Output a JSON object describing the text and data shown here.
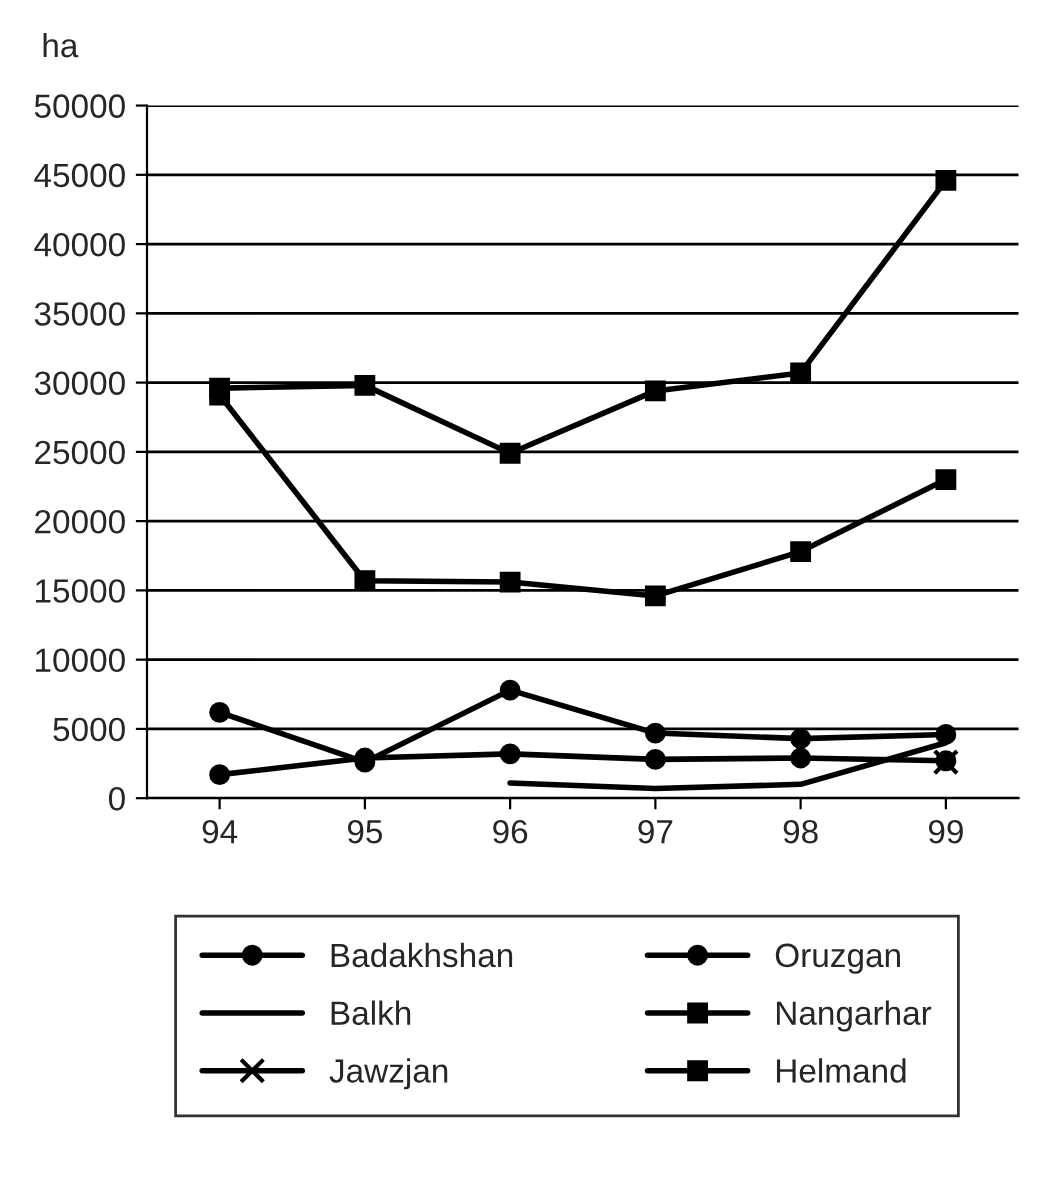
{
  "chart_data": {
    "type": "line",
    "ylabel": "ha",
    "categories": [
      "94",
      "95",
      "96",
      "97",
      "98",
      "99"
    ],
    "series": [
      {
        "name": "Badakhshan",
        "color": "#000000",
        "marker": "circle",
        "values": [
          1700,
          2900,
          3200,
          2800,
          2900,
          2700
        ]
      },
      {
        "name": "Balkh",
        "color": "#000000",
        "marker": "none",
        "values": [
          null,
          null,
          1100,
          700,
          1000,
          4000
        ]
      },
      {
        "name": "Jawzjan",
        "color": "#000000",
        "marker": "cross",
        "values": [
          null,
          null,
          null,
          null,
          null,
          2600
        ]
      },
      {
        "name": "Oruzgan",
        "color": "#000000",
        "marker": "circle",
        "values": [
          6200,
          2600,
          7800,
          4700,
          4300,
          4600
        ]
      },
      {
        "name": "Nangarhar",
        "color": "#000000",
        "marker": "square",
        "values": [
          29100,
          15700,
          15600,
          14600,
          17800,
          23000
        ]
      },
      {
        "name": "Helmand",
        "color": "#000000",
        "marker": "square",
        "values": [
          29600,
          29800,
          24900,
          29400,
          30700,
          44600
        ]
      }
    ],
    "ylim": [
      0,
      50000
    ],
    "yticks": [
      0,
      5000,
      10000,
      15000,
      20000,
      25000,
      30000,
      35000,
      40000,
      45000,
      50000
    ],
    "grid": "y",
    "legend": "bottom",
    "line_style": "solid"
  }
}
